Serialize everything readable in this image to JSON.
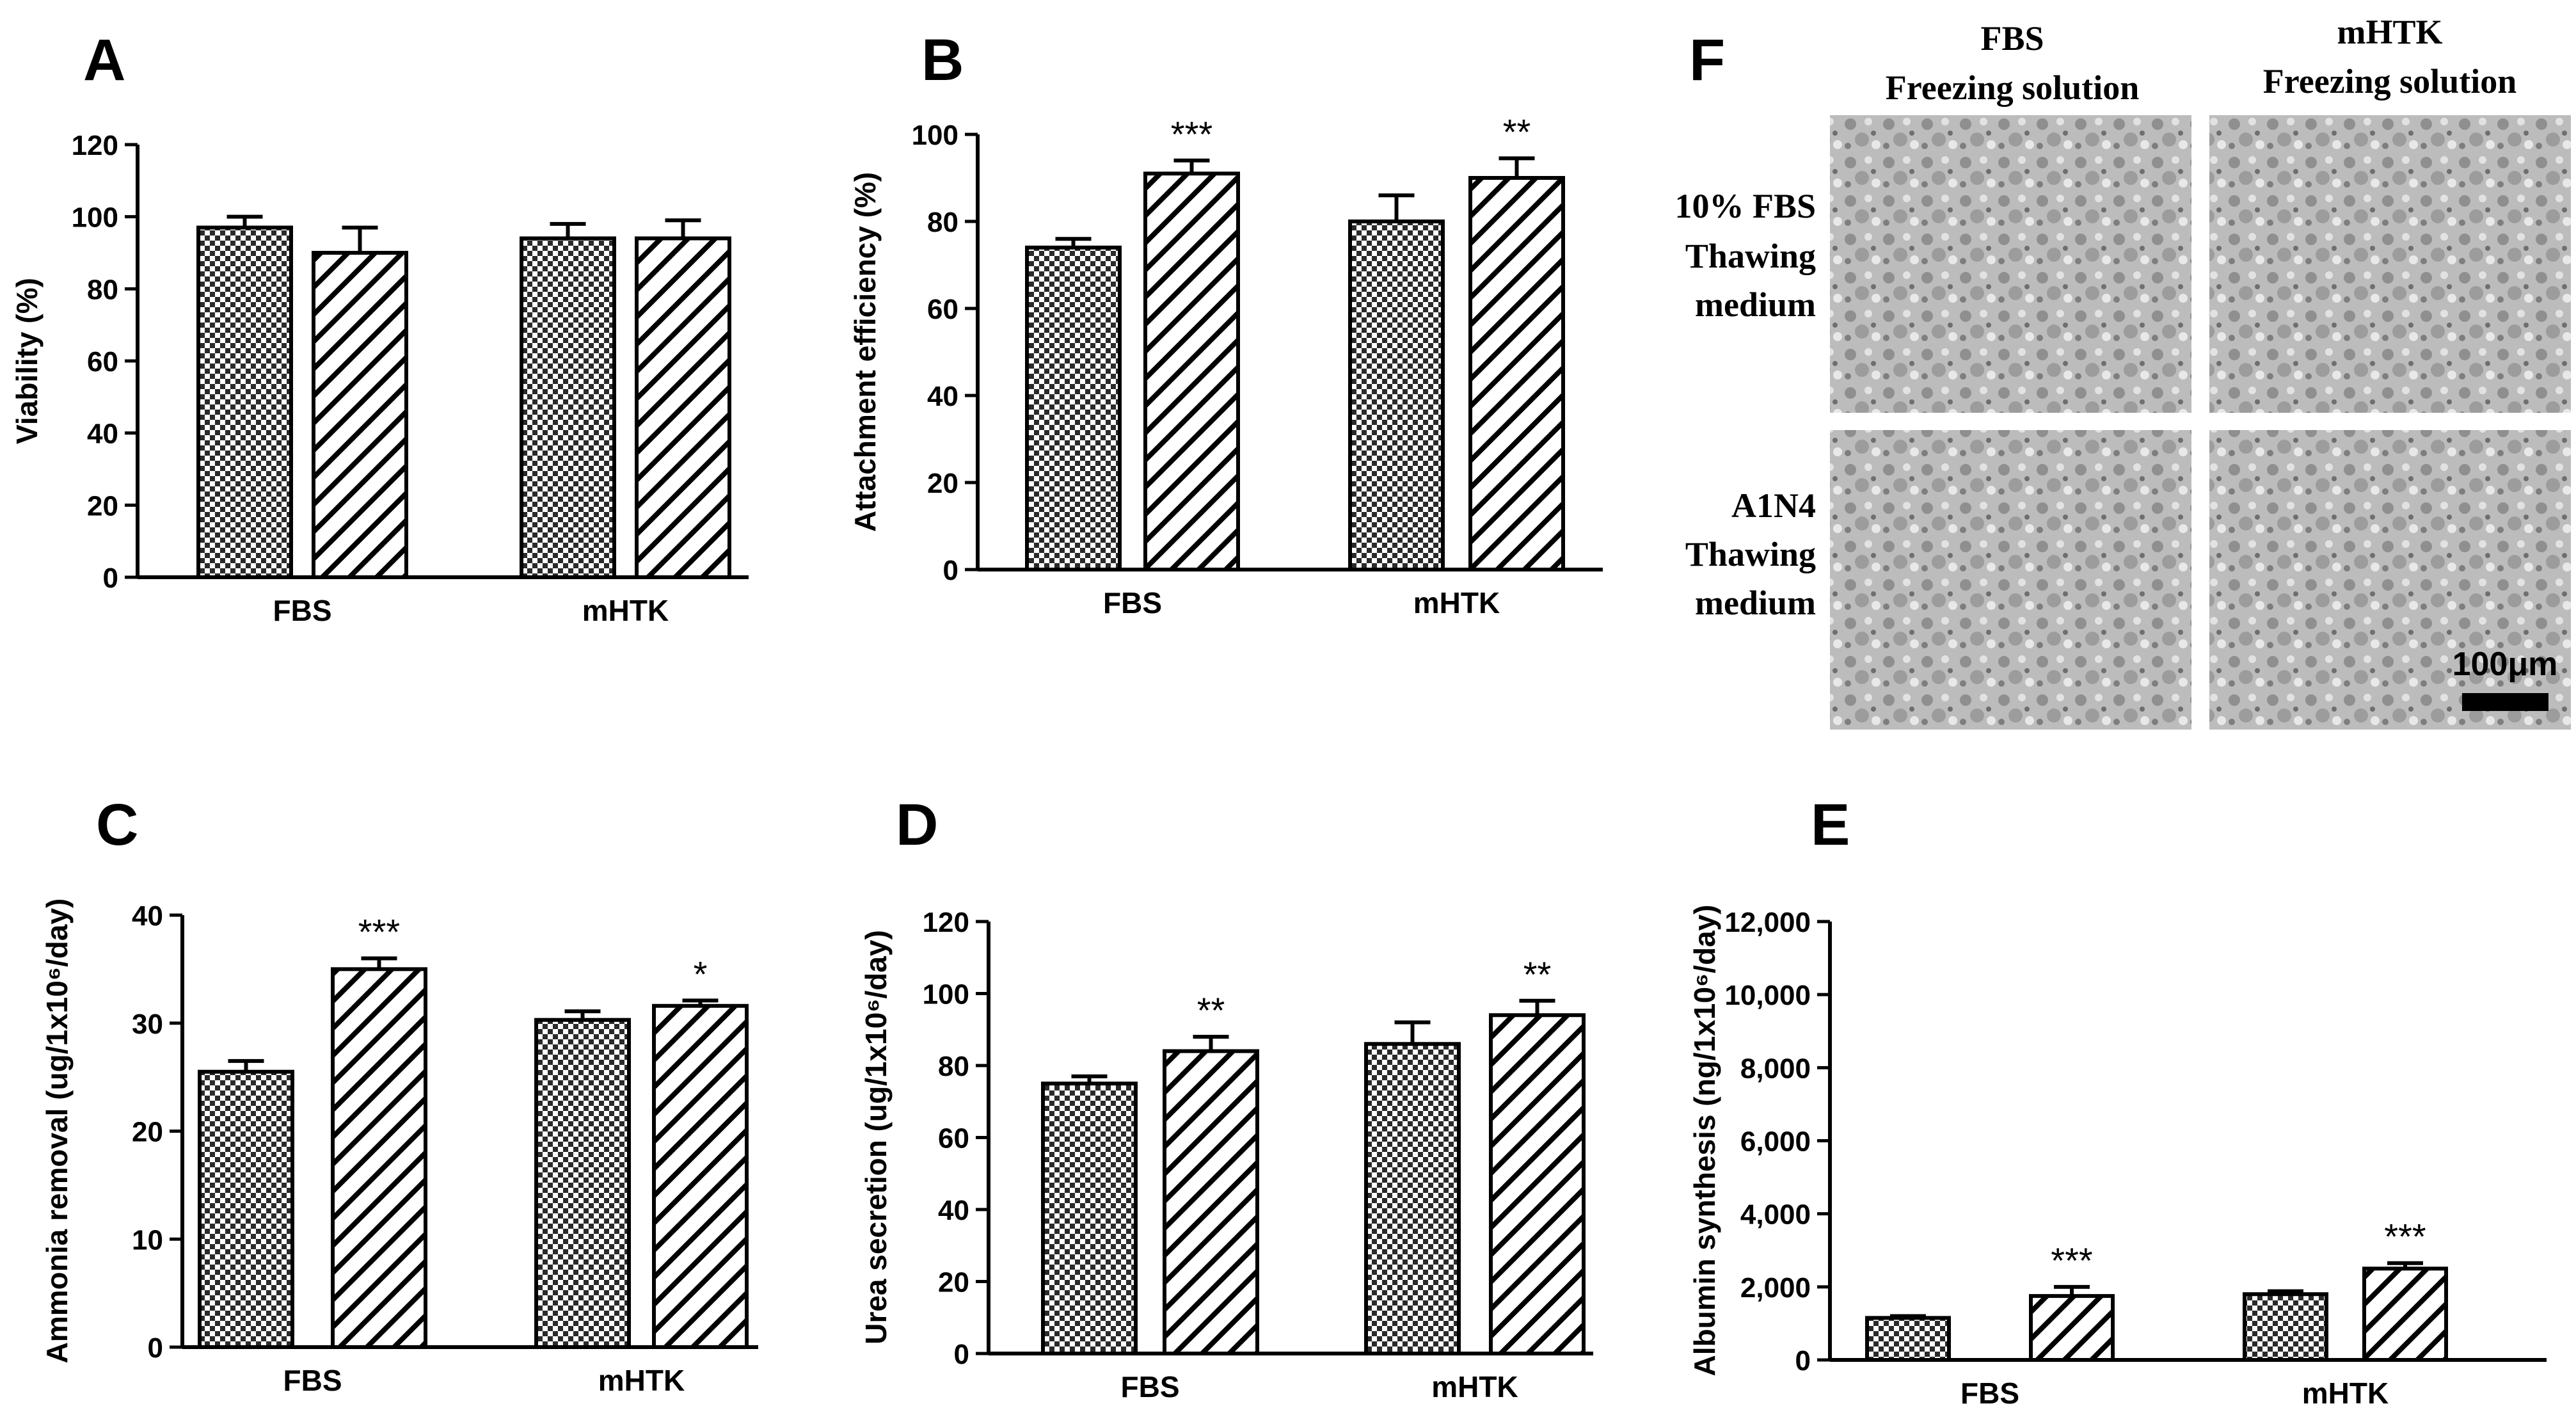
{
  "panels": {
    "A": {
      "letter": "A"
    },
    "B": {
      "letter": "B"
    },
    "C": {
      "letter": "C"
    },
    "D": {
      "letter": "D"
    },
    "E": {
      "letter": "E"
    },
    "F": {
      "letter": "F"
    }
  },
  "photo_panel": {
    "col_labels": [
      [
        "FBS",
        "Freezing solution"
      ],
      [
        "mHTK",
        "Freezing solution"
      ]
    ],
    "row_labels": [
      [
        "10% FBS",
        "Thawing",
        "medium"
      ],
      [
        "A1N4",
        "Thawing",
        "medium"
      ]
    ],
    "scale_bar_label": "100μm"
  },
  "chart_data": [
    {
      "id": "A",
      "type": "bar",
      "ylabel": "Viability (%)",
      "categories": [
        "FBS",
        "mHTK"
      ],
      "ylim": [
        0,
        120
      ],
      "yticks": [
        "0",
        "20",
        "40",
        "60",
        "80",
        "100",
        "120"
      ],
      "series": [
        {
          "name": "checkered",
          "values": [
            97,
            94
          ],
          "errors": [
            3,
            4
          ]
        },
        {
          "name": "hatched",
          "values": [
            90,
            94
          ],
          "errors": [
            7,
            5
          ]
        }
      ],
      "significance": [
        "",
        ""
      ]
    },
    {
      "id": "B",
      "type": "bar",
      "ylabel": "Attachment efficiency (%)",
      "categories": [
        "FBS",
        "mHTK"
      ],
      "ylim": [
        0,
        100
      ],
      "yticks": [
        "0",
        "20",
        "40",
        "60",
        "80",
        "100"
      ],
      "series": [
        {
          "name": "checkered",
          "values": [
            74,
            80
          ],
          "errors": [
            2,
            6
          ]
        },
        {
          "name": "hatched",
          "values": [
            91,
            90
          ],
          "errors": [
            3,
            4.5
          ]
        }
      ],
      "significance": [
        "***",
        "**"
      ]
    },
    {
      "id": "C",
      "type": "bar",
      "ylabel": "Ammonia removal (ug/1x10⁶/day)",
      "categories": [
        "FBS",
        "mHTK"
      ],
      "ylim": [
        0,
        40
      ],
      "yticks": [
        "0",
        "10",
        "20",
        "30",
        "40"
      ],
      "series": [
        {
          "name": "checkered",
          "values": [
            25.5,
            30.3
          ],
          "errors": [
            1,
            0.8
          ]
        },
        {
          "name": "hatched",
          "values": [
            35,
            31.6
          ],
          "errors": [
            1,
            0.5
          ]
        }
      ],
      "significance": [
        "***",
        "*"
      ]
    },
    {
      "id": "D",
      "type": "bar",
      "ylabel": "Urea secretion (ug/1x10⁶/day)",
      "categories": [
        "FBS",
        "mHTK"
      ],
      "ylim": [
        0,
        120
      ],
      "yticks": [
        "0",
        "20",
        "40",
        "60",
        "80",
        "100",
        "120"
      ],
      "series": [
        {
          "name": "checkered",
          "values": [
            75,
            86
          ],
          "errors": [
            2,
            6
          ]
        },
        {
          "name": "hatched",
          "values": [
            84,
            94
          ],
          "errors": [
            4,
            4
          ]
        }
      ],
      "significance": [
        "**",
        "**"
      ]
    },
    {
      "id": "E",
      "type": "bar",
      "ylabel": "Albumin synthesis  (ng/1x10⁶/day)",
      "categories": [
        "FBS",
        "mHTK"
      ],
      "ylim": [
        0,
        12000
      ],
      "yticks": [
        "0",
        "2,000",
        "4,000",
        "6,000",
        "8,000",
        "10,000",
        "12,000"
      ],
      "series": [
        {
          "name": "checkered",
          "values": [
            1150,
            1800
          ],
          "errors": [
            50,
            80
          ]
        },
        {
          "name": "hatched",
          "values": [
            1750,
            2500
          ],
          "errors": [
            250,
            150
          ]
        }
      ],
      "significance": [
        "***",
        "***"
      ]
    }
  ]
}
